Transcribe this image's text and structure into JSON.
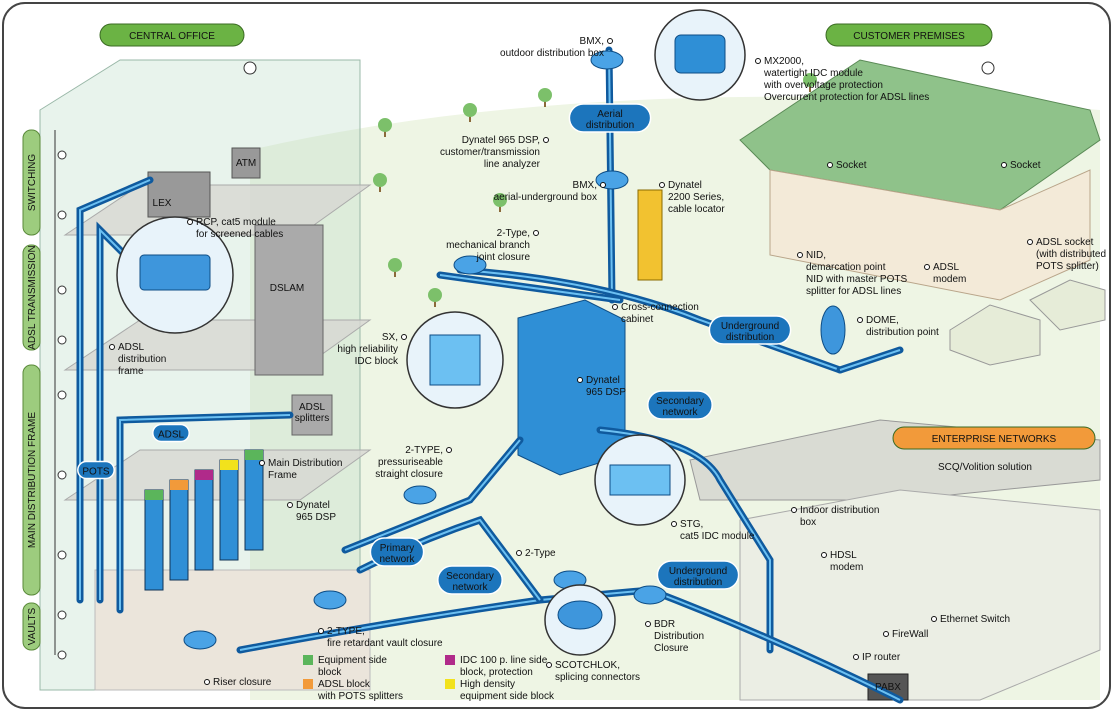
{
  "sections": {
    "central_office": "CENTRAL OFFICE",
    "customer_premises": "CUSTOMER PREMISES",
    "enterprise_networks": "ENTERPRISE NETWORKS",
    "enterprise_subtitle": "SCQ/Volition solution"
  },
  "side_labels": [
    "SWITCHING",
    "ADSL TRANSMISSION",
    "MAIN DISTRIBUTION FRAME",
    "VAULTS"
  ],
  "network_labels": [
    [
      "Aerial",
      "distribution"
    ],
    [
      "Underground",
      "distribution"
    ],
    [
      "Secondary",
      "network"
    ],
    [
      "Primary",
      "network"
    ],
    [
      "Secondary",
      "network"
    ],
    [
      "Underground",
      "distribution"
    ],
    [
      "ADSL"
    ],
    [
      "POTS"
    ]
  ],
  "equipment_labels": [
    [
      "LEX"
    ],
    [
      "ATM"
    ],
    [
      "DSLAM"
    ],
    [
      "ADSL",
      "splitters"
    ],
    [
      "PABX"
    ]
  ],
  "callouts": [
    {
      "lines": [
        "BMX,",
        "outdoor distribution box"
      ]
    },
    {
      "lines": [
        "MX2000,",
        "watertight IDC module",
        "with overvoltage protection"
      ],
      "notes": [
        "Overcurrent protection for ADSL lines"
      ]
    },
    {
      "lines": [
        "Dynatel 965 DSP,",
        "customer/transmission",
        "line analyzer"
      ]
    },
    {
      "lines": [
        "BMX,",
        "aerial-underground box"
      ]
    },
    {
      "lines": [
        "Dynatel",
        "2200 Series,",
        "cable locator"
      ]
    },
    {
      "lines": [
        "2-Type,",
        "mechanical branch",
        "joint closure"
      ]
    },
    {
      "lines": [
        "RCP, cat5 module",
        "for screened cables"
      ]
    },
    {
      "lines": [
        "Socket"
      ]
    },
    {
      "lines": [
        "Socket"
      ]
    },
    {
      "lines": [
        "NID,",
        "demarcation point"
      ],
      "notes": [
        "NID with master POTS",
        "splitter for ADSL lines"
      ]
    },
    {
      "lines": [
        "ADSL",
        "modem"
      ]
    },
    {
      "lines": [
        "ADSL socket"
      ],
      "notes": [
        "(with distributed",
        "POTS splitter)"
      ]
    },
    {
      "lines": [
        "Cross-connection",
        "cabinet"
      ]
    },
    {
      "lines": [
        "DOME,",
        "distribution point"
      ]
    },
    {
      "lines": [
        "SX,",
        "high reliability",
        "IDC block"
      ]
    },
    {
      "lines": [
        "Dynatel",
        "965 DSP"
      ]
    },
    {
      "lines": [
        "ADSL",
        "distribution",
        "frame"
      ]
    },
    {
      "lines": [
        "Main Distribution",
        "Frame"
      ]
    },
    {
      "lines": [
        "Dynatel",
        "965 DSP"
      ]
    },
    {
      "lines": [
        "2-TYPE,",
        "pressuriseable",
        "straight closure"
      ]
    },
    {
      "lines": [
        "STG,",
        "cat5 IDC module"
      ]
    },
    {
      "lines": [
        "Indoor distribution",
        "box"
      ]
    },
    {
      "lines": [
        "HDSL",
        "modem"
      ]
    },
    {
      "lines": [
        "Ethernet Switch"
      ]
    },
    {
      "lines": [
        "FireWall"
      ]
    },
    {
      "lines": [
        "IP router"
      ]
    },
    {
      "lines": [
        "2-Type"
      ]
    },
    {
      "lines": [
        "BDR",
        "Distribution",
        "Closure"
      ]
    },
    {
      "lines": [
        "SCOTCHLOK,",
        "splicing connectors"
      ]
    },
    {
      "lines": [
        "2-TYPE,",
        "fire retardant vault closure"
      ]
    },
    {
      "lines": [
        "Riser closure"
      ]
    }
  ],
  "legend": [
    {
      "lines": [
        "Equipment side",
        "block"
      ],
      "color": "#5bb55b"
    },
    {
      "lines": [
        "ADSL block"
      ],
      "notes": [
        "with POTS splitters"
      ],
      "color": "#f29a3a"
    },
    {
      "lines": [
        "IDC 100 p. line side",
        "block, protection"
      ],
      "color": "#b02a8a"
    },
    {
      "lines": [
        "High density",
        "equipment side block"
      ],
      "color": "#f2e21c"
    }
  ]
}
